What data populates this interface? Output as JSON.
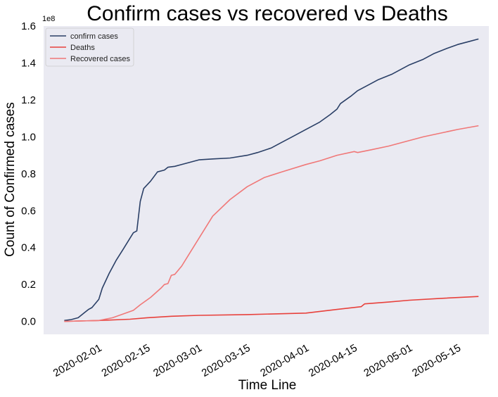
{
  "chart_data": {
    "type": "line",
    "title": "Confirm cases vs recovered vs Deaths",
    "xlabel": "Time Line",
    "ylabel": "Count of Confirmed cases",
    "y_offset_label": "1e8",
    "y_scale_factor": 100000000,
    "ylim": [
      -0.07,
      1.6
    ],
    "xlim": [
      "2020-01-16",
      "2020-05-24"
    ],
    "y_ticks": [
      "0.0",
      "0.2",
      "0.4",
      "0.6",
      "0.8",
      "1.0",
      "1.2",
      "1.4",
      "1.6"
    ],
    "x_ticks": [
      "2020-02-01",
      "2020-02-15",
      "2020-03-01",
      "2020-03-15",
      "2020-04-01",
      "2020-04-15",
      "2020-05-01",
      "2020-05-15"
    ],
    "grid": false,
    "background": "#eaeaf2",
    "legend_position": "top-left",
    "series": [
      {
        "name": "confirm cases",
        "color": "#2a3f66",
        "points": [
          [
            "2020-01-22",
            0.005
          ],
          [
            "2020-01-24",
            0.01
          ],
          [
            "2020-01-26",
            0.02
          ],
          [
            "2020-01-28",
            0.05
          ],
          [
            "2020-01-29",
            0.065
          ],
          [
            "2020-01-30",
            0.075
          ],
          [
            "2020-02-01",
            0.12
          ],
          [
            "2020-02-02",
            0.18
          ],
          [
            "2020-02-04",
            0.26
          ],
          [
            "2020-02-06",
            0.33
          ],
          [
            "2020-02-08",
            0.39
          ],
          [
            "2020-02-10",
            0.45
          ],
          [
            "2020-02-11",
            0.48
          ],
          [
            "2020-02-12",
            0.49
          ],
          [
            "2020-02-13",
            0.65
          ],
          [
            "2020-02-14",
            0.72
          ],
          [
            "2020-02-16",
            0.76
          ],
          [
            "2020-02-18",
            0.81
          ],
          [
            "2020-02-20",
            0.82
          ],
          [
            "2020-02-21",
            0.835
          ],
          [
            "2020-02-23",
            0.84
          ],
          [
            "2020-02-26",
            0.855
          ],
          [
            "2020-03-01",
            0.875
          ],
          [
            "2020-03-05",
            0.88
          ],
          [
            "2020-03-10",
            0.885
          ],
          [
            "2020-03-15",
            0.9
          ],
          [
            "2020-03-18",
            0.915
          ],
          [
            "2020-03-22",
            0.94
          ],
          [
            "2020-03-25",
            0.97
          ],
          [
            "2020-03-28",
            1.0
          ],
          [
            "2020-04-01",
            1.04
          ],
          [
            "2020-04-05",
            1.08
          ],
          [
            "2020-04-08",
            1.12
          ],
          [
            "2020-04-10",
            1.15
          ],
          [
            "2020-04-11",
            1.18
          ],
          [
            "2020-04-14",
            1.22
          ],
          [
            "2020-04-16",
            1.25
          ],
          [
            "2020-04-19",
            1.28
          ],
          [
            "2020-04-22",
            1.31
          ],
          [
            "2020-04-26",
            1.34
          ],
          [
            "2020-04-29",
            1.37
          ],
          [
            "2020-05-01",
            1.39
          ],
          [
            "2020-05-05",
            1.42
          ],
          [
            "2020-05-08",
            1.45
          ],
          [
            "2020-05-12",
            1.48
          ],
          [
            "2020-05-15",
            1.5
          ],
          [
            "2020-05-18",
            1.515
          ],
          [
            "2020-05-21",
            1.53
          ]
        ]
      },
      {
        "name": "Deaths",
        "color": "#e8413c",
        "points": [
          [
            "2020-01-22",
            0.0
          ],
          [
            "2020-02-01",
            0.005
          ],
          [
            "2020-02-10",
            0.012
          ],
          [
            "2020-02-15",
            0.02
          ],
          [
            "2020-02-22",
            0.028
          ],
          [
            "2020-03-01",
            0.033
          ],
          [
            "2020-03-15",
            0.037
          ],
          [
            "2020-04-01",
            0.045
          ],
          [
            "2020-04-10",
            0.065
          ],
          [
            "2020-04-17",
            0.08
          ],
          [
            "2020-04-18",
            0.095
          ],
          [
            "2020-04-25",
            0.105
          ],
          [
            "2020-05-01",
            0.115
          ],
          [
            "2020-05-10",
            0.125
          ],
          [
            "2020-05-21",
            0.135
          ]
        ]
      },
      {
        "name": "Recovered cases",
        "color": "#f07878",
        "points": [
          [
            "2020-01-22",
            0.0
          ],
          [
            "2020-02-01",
            0.005
          ],
          [
            "2020-02-05",
            0.02
          ],
          [
            "2020-02-08",
            0.04
          ],
          [
            "2020-02-11",
            0.06
          ],
          [
            "2020-02-13",
            0.09
          ],
          [
            "2020-02-16",
            0.13
          ],
          [
            "2020-02-19",
            0.18
          ],
          [
            "2020-02-20",
            0.2
          ],
          [
            "2020-02-21",
            0.205
          ],
          [
            "2020-02-22",
            0.25
          ],
          [
            "2020-02-23",
            0.255
          ],
          [
            "2020-02-25",
            0.3
          ],
          [
            "2020-02-27",
            0.36
          ],
          [
            "2020-03-01",
            0.45
          ],
          [
            "2020-03-05",
            0.57
          ],
          [
            "2020-03-10",
            0.66
          ],
          [
            "2020-03-15",
            0.73
          ],
          [
            "2020-03-20",
            0.78
          ],
          [
            "2020-03-25",
            0.81
          ],
          [
            "2020-04-01",
            0.85
          ],
          [
            "2020-04-05",
            0.87
          ],
          [
            "2020-04-10",
            0.9
          ],
          [
            "2020-04-15",
            0.92
          ],
          [
            "2020-04-16",
            0.915
          ],
          [
            "2020-04-20",
            0.93
          ],
          [
            "2020-04-25",
            0.95
          ],
          [
            "2020-05-01",
            0.98
          ],
          [
            "2020-05-05",
            1.0
          ],
          [
            "2020-05-10",
            1.02
          ],
          [
            "2020-05-15",
            1.04
          ],
          [
            "2020-05-21",
            1.06
          ]
        ]
      }
    ]
  }
}
